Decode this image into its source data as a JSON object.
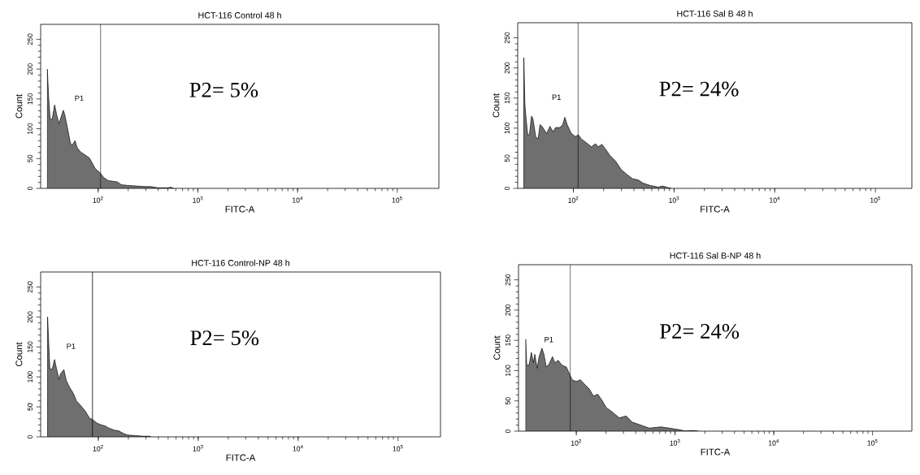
{
  "chart_data": [
    {
      "type": "area",
      "title": "HCT-116 Control 48 h",
      "xlabel": "FITC-A",
      "ylabel": "Count",
      "log": "x",
      "color": "#6f6f6f",
      "x": [
        30.9,
        31.9,
        33.0,
        34.6,
        36.6,
        38.3,
        40.4,
        42.4,
        44.7,
        46.2,
        49.4,
        52.8,
        55.3,
        58.5,
        61.7,
        66.8,
        74.0,
        81.8,
        87.5,
        93.5,
        103.5,
        114,
        126,
        140,
        155,
        171,
        196,
        239,
        293,
        335,
        396,
        501,
        536,
        573
      ],
      "values": [
        200,
        152,
        116,
        116,
        140,
        124,
        109,
        119,
        131,
        124,
        100,
        75,
        73,
        80,
        68,
        61,
        56,
        51,
        42,
        33,
        27,
        18,
        13,
        12,
        11,
        6,
        5,
        4,
        3,
        3,
        1,
        1,
        2,
        0
      ],
      "xlim": [
        26.5,
        261000
      ],
      "ylim": [
        0,
        275
      ],
      "xticks": [
        {
          "value": 100,
          "label": "10$^{2}$"
        },
        {
          "value": 1000,
          "label": "10$^{3}$"
        },
        {
          "value": 10000,
          "label": "10$^{4}$"
        },
        {
          "value": 100000,
          "label": "10$^{5}$"
        }
      ],
      "yticks": [
        0,
        50,
        100,
        150,
        200,
        250
      ],
      "ref_lines": [
        {
          "axis": "x",
          "value": 106,
          "label": "P1"
        }
      ],
      "annotations": [
        "P2= 5%"
      ]
    },
    {
      "type": "area",
      "title": "HCT-116 Sal B 48 h",
      "xlabel": "FITC-A",
      "ylabel": "Count",
      "log": "x",
      "color": "#6f6f6f",
      "x": [
        32.2,
        33.0,
        33.9,
        35.2,
        36.6,
        38.4,
        39.6,
        42.3,
        44.6,
        46.7,
        49.8,
        54.2,
        58.6,
        62.5,
        66.7,
        73.6,
        78.5,
        82.2,
        86.7,
        95.5,
        105,
        112,
        120,
        132,
        151,
        166,
        177,
        192,
        209,
        230,
        263,
        299,
        341,
        388,
        442,
        488,
        574,
        698,
        770,
        877,
        937
      ],
      "values": [
        217,
        140,
        116,
        89,
        89,
        120,
        116,
        86,
        82,
        106,
        101,
        91,
        103,
        94,
        101,
        101,
        106,
        118,
        106,
        91,
        86,
        89,
        82,
        77,
        69,
        74,
        69,
        73,
        65,
        55,
        45,
        31,
        23,
        16,
        14,
        9,
        5,
        2,
        4,
        1,
        0
      ],
      "xlim": [
        28,
        230000
      ],
      "ylim": [
        0,
        275
      ],
      "xticks": [
        {
          "value": 100,
          "label": "10$^{2}$"
        },
        {
          "value": 1000,
          "label": "10$^{3}$"
        },
        {
          "value": 10000,
          "label": "10$^{4}$"
        },
        {
          "value": 100000,
          "label": "10$^{5}$"
        }
      ],
      "yticks": [
        0,
        50,
        100,
        150,
        200,
        250
      ],
      "ref_lines": [
        {
          "axis": "x",
          "value": 111,
          "label": "P1"
        }
      ],
      "annotations": [
        "P2= 24%"
      ]
    },
    {
      "type": "area",
      "title": "HCT-116 Control-NP 48 h",
      "xlabel": "FITC-A",
      "ylabel": "Count",
      "log": "x",
      "color": "#6f6f6f",
      "x": [
        31.1,
        31.9,
        32.8,
        34.6,
        36.5,
        38.3,
        40.4,
        41.8,
        45.3,
        47.8,
        51.1,
        56.5,
        60.4,
        66.8,
        74.0,
        81.8,
        87.5,
        96.7,
        107,
        118,
        126,
        145,
        160,
        177,
        196,
        239,
        283,
        324,
        335
      ],
      "values": [
        200,
        157,
        113,
        113,
        129,
        113,
        96,
        105,
        112,
        94,
        84,
        72,
        60,
        52,
        43,
        31,
        29,
        23,
        20,
        18,
        15,
        11,
        10,
        6,
        3,
        2,
        1,
        1,
        0
      ],
      "xlim": [
        26.5,
        266000
      ],
      "ylim": [
        0,
        275
      ],
      "xticks": [
        {
          "value": 100,
          "label": "10$^{2}$"
        },
        {
          "value": 1000,
          "label": "10$^{3}$"
        },
        {
          "value": 10000,
          "label": "10$^{4}$"
        },
        {
          "value": 100000,
          "label": "10$^{5}$"
        }
      ],
      "yticks": [
        0,
        50,
        100,
        150,
        200,
        250
      ],
      "ref_lines": [
        {
          "axis": "x",
          "value": 87.5,
          "label": "P1"
        }
      ],
      "annotations": [
        "P2= 5%"
      ]
    },
    {
      "type": "area",
      "title": "HCT-116 Sal B-NP 48 h",
      "xlabel": "FITC-A",
      "ylabel": "Count",
      "log": "x",
      "color": "#6f6f6f",
      "x": [
        30.7,
        31.5,
        33.2,
        35.1,
        36.7,
        38.0,
        40.1,
        42.0,
        44.9,
        47.0,
        49.6,
        53.1,
        57.4,
        60.6,
        65.6,
        71.6,
        79.2,
        85.8,
        90.5,
        100,
        110,
        122,
        135,
        149,
        165,
        182,
        201,
        230,
        272,
        321,
        367,
        449,
        548,
        716,
        875,
        1143,
        1262,
        1493,
        1706
      ],
      "values": [
        152,
        109,
        109,
        130,
        113,
        127,
        104,
        123,
        137,
        127,
        106,
        111,
        123,
        113,
        117,
        109,
        106,
        94,
        85,
        82,
        85,
        77,
        70,
        58,
        61,
        51,
        39,
        32,
        22,
        25,
        15,
        10,
        5,
        7,
        5,
        2,
        0,
        1,
        0
      ],
      "xlim": [
        26,
        250000
      ],
      "ylim": [
        0,
        275
      ],
      "xticks": [
        {
          "value": 100,
          "label": "10$^{2}$"
        },
        {
          "value": 1000,
          "label": "10$^{3}$"
        },
        {
          "value": 10000,
          "label": "10$^{4}$"
        },
        {
          "value": 100000,
          "label": "10$^{5}$"
        }
      ],
      "yticks": [
        0,
        50,
        100,
        150,
        200,
        250
      ],
      "ref_lines": [
        {
          "axis": "x",
          "value": 86.9,
          "label": "P1"
        }
      ],
      "annotations": [
        "P2= 24%"
      ]
    }
  ]
}
